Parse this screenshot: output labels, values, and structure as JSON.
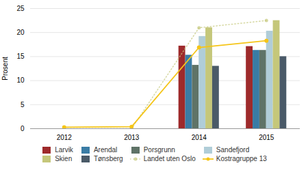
{
  "chart_data": {
    "type": "bar",
    "categories": [
      "2012",
      "2013",
      "2014",
      "2015"
    ],
    "series": [
      {
        "name": "Larvik",
        "color": "#9e2a2b",
        "values": [
          0,
          0,
          17.2,
          17.1
        ]
      },
      {
        "name": "Arendal",
        "color": "#3a7ca5",
        "values": [
          0,
          0,
          15.3,
          16.3
        ]
      },
      {
        "name": "Porsgrunn",
        "color": "#5f7367",
        "values": [
          0,
          0,
          13.2,
          16.3
        ]
      },
      {
        "name": "Sandefjord",
        "color": "#b0cdd8",
        "values": [
          0,
          0,
          19.2,
          20.3
        ]
      },
      {
        "name": "Skien",
        "color": "#c5c77a",
        "values": [
          0,
          0,
          21.0,
          22.5
        ]
      },
      {
        "name": "Tønsberg",
        "color": "#4a5a68",
        "values": [
          0,
          0,
          13.0,
          15.0
        ]
      },
      {
        "name": "Landet uten Oslo",
        "type": "line",
        "color": "#c5c77a",
        "values": [
          0.0,
          0.0,
          21.0,
          22.5
        ],
        "marker": "circle",
        "line_style": "dotted"
      },
      {
        "name": "Kostragruppe 13",
        "type": "line",
        "color": "#f5c518",
        "values": [
          0.3,
          0.4,
          16.9,
          18.3
        ],
        "marker": "circle",
        "line_style": "solid"
      }
    ],
    "ylabel": "Prosent",
    "ylim": [
      0,
      25
    ],
    "yticks": [
      0,
      5,
      10,
      15,
      20,
      25
    ],
    "grid": true,
    "legend": "bottom"
  }
}
